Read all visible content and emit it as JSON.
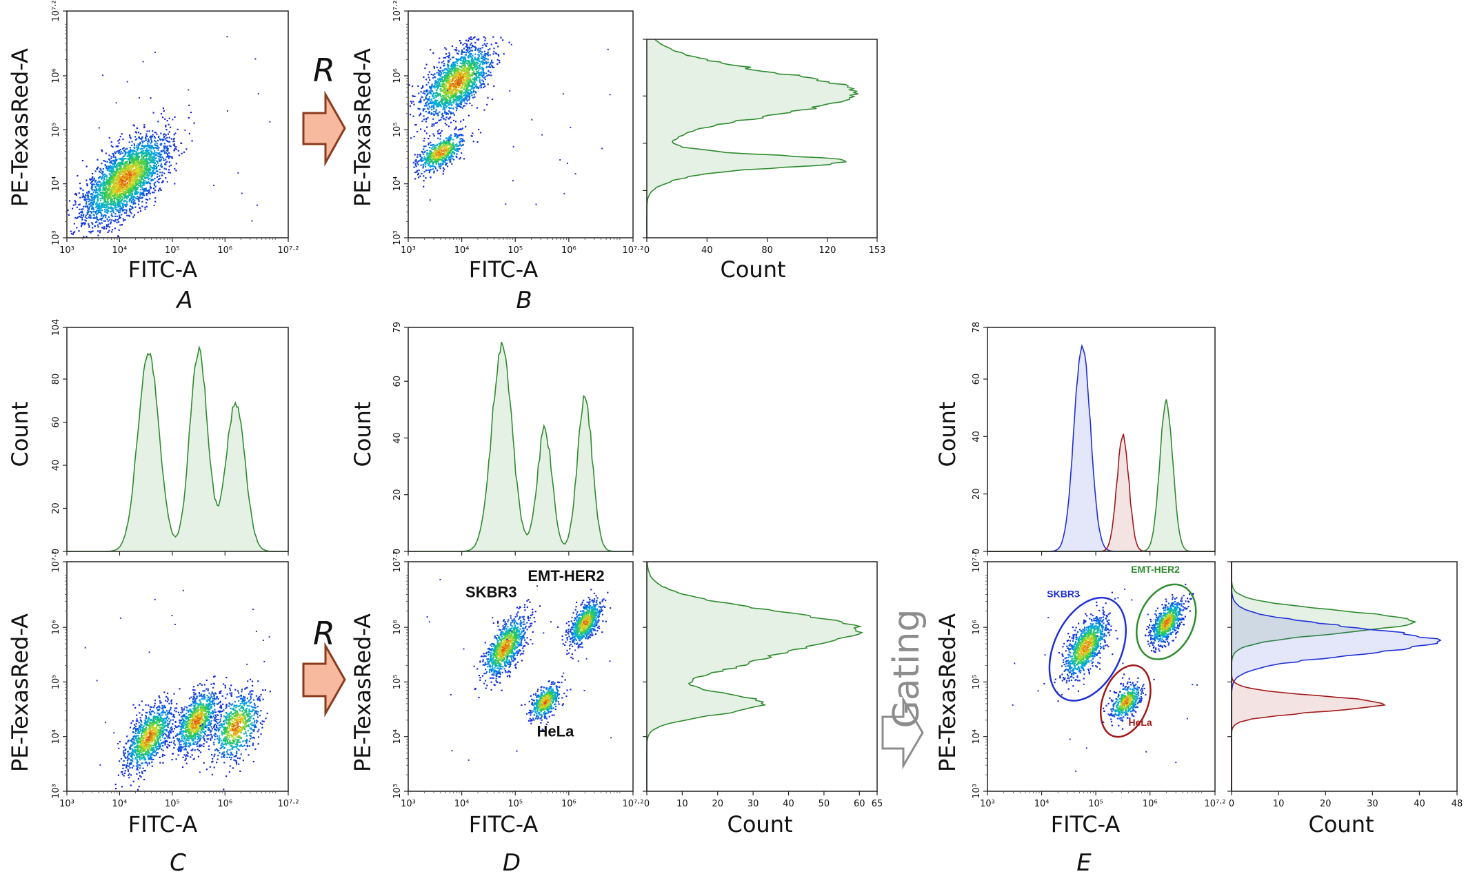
{
  "labels": {
    "x_fitc": "FITC-A",
    "y_pe": "PE-TexasRed-A",
    "count": "Count",
    "panel_a": "A",
    "panel_b": "B",
    "panel_c": "C",
    "panel_d": "D",
    "panel_e": "E",
    "arrow_r": "R",
    "gating": "Gating"
  },
  "colors": {
    "green": "#2e8b2e",
    "green_fill": "#e6f4e6",
    "blue": "#1f2fd6",
    "red": "#a01818",
    "arrow_fill": "#f7b9a0",
    "arrow_stroke": "#8b3a1a",
    "gating_arrow": "#8c8c8c"
  },
  "chart_data": [
    {
      "id": "A",
      "type": "scatter",
      "xlabel": "FITC-A",
      "ylabel": "PE-TexasRed-A",
      "xticks": [
        "10³",
        "10⁴",
        "10⁵",
        "10⁶",
        "10⁷·²"
      ],
      "yticks": [
        "10³",
        "10⁴",
        "10⁵",
        "10⁶",
        "10⁷·²"
      ],
      "xlim_log10": [
        3,
        7.2
      ],
      "ylim_log10": [
        3,
        7.2
      ],
      "populations": [
        {
          "x": 4.1,
          "y": 4.1,
          "sx": 0.4,
          "sy": 0.4,
          "rho": 0.65,
          "n": 2800
        }
      ]
    },
    {
      "id": "B",
      "type": "scatter",
      "xlabel": "FITC-A",
      "ylabel": "PE-TexasRed-A",
      "xticks": [
        "10³",
        "10⁴",
        "10⁵",
        "10⁶",
        "10⁷·²"
      ],
      "yticks": [
        "10³",
        "10⁴",
        "10⁵",
        "10⁶",
        "10⁷·²"
      ],
      "xlim_log10": [
        3,
        7.2
      ],
      "ylim_log10": [
        3,
        7.2
      ],
      "populations": [
        {
          "x": 3.9,
          "y": 5.9,
          "sx": 0.33,
          "sy": 0.33,
          "rho": 0.6,
          "n": 1700
        },
        {
          "x": 3.6,
          "y": 4.6,
          "sx": 0.22,
          "sy": 0.18,
          "rho": 0.6,
          "n": 600
        }
      ]
    },
    {
      "id": "B-hist",
      "type": "histogram",
      "orientation": "horizontal",
      "xlabel": "Count",
      "xticks": [
        "0",
        "40",
        "80",
        "120",
        "153"
      ],
      "xlim": [
        0,
        153
      ],
      "ylim_log10": [
        3,
        7.2
      ],
      "series": [
        {
          "color": "green",
          "peaks": [
            {
              "mu": 6.05,
              "sigma": 0.45,
              "amp": 95
            },
            {
              "mu": 4.62,
              "sigma": 0.12,
              "amp": 60
            },
            {
              "mu": 4.55,
              "sigma": 0.25,
              "amp": 30
            }
          ],
          "noise": 10,
          "peak_max": 140
        }
      ]
    },
    {
      "id": "C-hist",
      "type": "histogram",
      "orientation": "vertical",
      "ylabel": "Count",
      "yticks": [
        "0",
        "20",
        "40",
        "60",
        "80",
        "104"
      ],
      "ylim": [
        0,
        104
      ],
      "xlim_log10": [
        3,
        7.2
      ],
      "series": [
        {
          "color": "green",
          "peaks": [
            {
              "mu": 4.55,
              "sigma": 0.2,
              "amp": 88
            },
            {
              "mu": 5.5,
              "sigma": 0.17,
              "amp": 88
            },
            {
              "mu": 6.2,
              "sigma": 0.18,
              "amp": 65
            }
          ],
          "noise": 4,
          "peak_max": 93
        }
      ]
    },
    {
      "id": "C",
      "type": "scatter",
      "xlabel": "FITC-A",
      "ylabel": "PE-TexasRed-A",
      "xticks": [
        "10³",
        "10⁴",
        "10⁵",
        "10⁶",
        "10⁷·²"
      ],
      "yticks": [
        "10³",
        "10⁴",
        "10⁵",
        "10⁶",
        "10⁷·²"
      ],
      "xlim_log10": [
        3,
        7.2
      ],
      "ylim_log10": [
        3,
        7.2
      ],
      "populations": [
        {
          "x": 4.55,
          "y": 4.0,
          "sx": 0.22,
          "sy": 0.3,
          "rho": 0.6,
          "n": 1100
        },
        {
          "x": 5.45,
          "y": 4.3,
          "sx": 0.2,
          "sy": 0.28,
          "rho": 0.55,
          "n": 1000
        },
        {
          "x": 6.2,
          "y": 4.2,
          "sx": 0.22,
          "sy": 0.3,
          "rho": 0.4,
          "n": 800
        }
      ]
    },
    {
      "id": "D-hist",
      "type": "histogram",
      "orientation": "vertical",
      "ylabel": "Count",
      "yticks": [
        "0",
        "20",
        "40",
        "60",
        "79"
      ],
      "ylim": [
        0,
        79
      ],
      "xlim_log10": [
        3,
        7.2
      ],
      "series": [
        {
          "color": "green",
          "peaks": [
            {
              "mu": 4.75,
              "sigma": 0.19,
              "amp": 64
            },
            {
              "mu": 5.55,
              "sigma": 0.14,
              "amp": 38
            },
            {
              "mu": 6.3,
              "sigma": 0.14,
              "amp": 48
            }
          ],
          "noise": 4,
          "peak_max": 72
        }
      ]
    },
    {
      "id": "D",
      "type": "scatter",
      "xlabel": "FITC-A",
      "ylabel": "PE-TexasRed-A",
      "xticks": [
        "10³",
        "10⁴",
        "10⁵",
        "10⁶",
        "10⁷·²"
      ],
      "yticks": [
        "10³",
        "10⁴",
        "10⁵",
        "10⁶",
        "10⁷·²"
      ],
      "xlim_log10": [
        3,
        7.2
      ],
      "ylim_log10": [
        3,
        7.2
      ],
      "populations": [
        {
          "x": 4.8,
          "y": 5.65,
          "sx": 0.2,
          "sy": 0.28,
          "rho": 0.65,
          "n": 1000
        },
        {
          "x": 6.3,
          "y": 6.1,
          "sx": 0.15,
          "sy": 0.2,
          "rho": 0.6,
          "n": 750
        },
        {
          "x": 5.55,
          "y": 4.65,
          "sx": 0.14,
          "sy": 0.16,
          "rho": 0.5,
          "n": 500
        }
      ],
      "annotations": [
        {
          "text": "SKBR3",
          "x": 4.55,
          "y": 6.55
        },
        {
          "text": "EMT-HER2",
          "x": 5.95,
          "y": 6.85
        },
        {
          "text": "HeLa",
          "x": 5.75,
          "y": 4.0
        }
      ]
    },
    {
      "id": "D-hist-y",
      "type": "histogram",
      "orientation": "horizontal",
      "xlabel": "Count",
      "xticks": [
        "0",
        "10",
        "20",
        "30",
        "40",
        "50",
        "60",
        "65"
      ],
      "xlim": [
        0,
        65
      ],
      "ylim_log10": [
        3,
        7.2
      ],
      "series": [
        {
          "color": "green",
          "peaks": [
            {
              "mu": 5.95,
              "sigma": 0.35,
              "amp": 52
            },
            {
              "mu": 4.6,
              "sigma": 0.2,
              "amp": 28
            },
            {
              "mu": 5.3,
              "sigma": 0.22,
              "amp": 14
            }
          ],
          "noise": 3,
          "peak_max": 60
        }
      ]
    },
    {
      "id": "E-hist",
      "type": "histogram",
      "orientation": "vertical",
      "ylabel": "Count",
      "yticks": [
        "0",
        "20",
        "40",
        "60",
        "78"
      ],
      "ylim": [
        0,
        78
      ],
      "xlim_log10": [
        3,
        7.2
      ],
      "series": [
        {
          "color": "blue",
          "peaks": [
            {
              "mu": 4.75,
              "sigma": 0.15,
              "amp": 68
            }
          ],
          "noise": 3,
          "peak_max": 72
        },
        {
          "color": "red",
          "peaks": [
            {
              "mu": 5.5,
              "sigma": 0.11,
              "amp": 40
            }
          ],
          "noise": 2,
          "peak_max": 40
        },
        {
          "color": "green",
          "peaks": [
            {
              "mu": 6.3,
              "sigma": 0.12,
              "amp": 50
            }
          ],
          "noise": 2,
          "peak_max": 52
        }
      ]
    },
    {
      "id": "E",
      "type": "scatter",
      "xlabel": "FITC-A",
      "ylabel": "PE-TexasRed-A",
      "xticks": [
        "10³",
        "10⁴",
        "10⁵",
        "10⁶",
        "10⁷·²"
      ],
      "yticks": [
        "10³",
        "10⁴",
        "10⁵",
        "10⁶",
        "10⁷·²"
      ],
      "xlim_log10": [
        3,
        7.2
      ],
      "ylim_log10": [
        3,
        7.2
      ],
      "populations": [
        {
          "x": 4.8,
          "y": 5.65,
          "sx": 0.2,
          "sy": 0.28,
          "rho": 0.65,
          "n": 1000
        },
        {
          "x": 6.3,
          "y": 6.1,
          "sx": 0.15,
          "sy": 0.2,
          "rho": 0.6,
          "n": 750
        },
        {
          "x": 5.55,
          "y": 4.65,
          "sx": 0.14,
          "sy": 0.16,
          "rho": 0.5,
          "n": 500
        }
      ],
      "gates": [
        {
          "name": "SKBR3",
          "color": "blue",
          "cx": 4.85,
          "cy": 5.6,
          "rx": 0.62,
          "ry": 1.0,
          "rot": 25
        },
        {
          "name": "EMT-HER2",
          "color": "green",
          "cx": 6.3,
          "cy": 6.1,
          "rx": 0.5,
          "ry": 0.72,
          "rot": 25
        },
        {
          "name": "HeLa",
          "color": "red",
          "cx": 5.55,
          "cy": 4.65,
          "rx": 0.42,
          "ry": 0.68,
          "rot": 20
        }
      ],
      "annotations": [
        {
          "text": "SKBR3",
          "x": 4.4,
          "y": 6.55,
          "color": "blue"
        },
        {
          "text": "EMT-HER2",
          "x": 6.1,
          "y": 7.0,
          "color": "green"
        },
        {
          "text": "HeLa",
          "x": 5.82,
          "y": 4.2,
          "color": "red"
        }
      ]
    },
    {
      "id": "E-hist-y",
      "type": "histogram",
      "orientation": "horizontal",
      "xlabel": "Count",
      "xticks": [
        "0",
        "10",
        "20",
        "30",
        "40",
        "48"
      ],
      "xlim": [
        0,
        48
      ],
      "ylim_log10": [
        3,
        7.2
      ],
      "series": [
        {
          "color": "green",
          "peaks": [
            {
              "mu": 6.1,
              "sigma": 0.2,
              "amp": 36
            }
          ],
          "noise": 2,
          "peak_max": 39
        },
        {
          "color": "blue",
          "peaks": [
            {
              "mu": 5.75,
              "sigma": 0.25,
              "amp": 38
            }
          ],
          "noise": 3,
          "peak_max": 43
        },
        {
          "color": "red",
          "peaks": [
            {
              "mu": 4.6,
              "sigma": 0.14,
              "amp": 28
            }
          ],
          "noise": 2,
          "peak_max": 32
        }
      ]
    }
  ]
}
